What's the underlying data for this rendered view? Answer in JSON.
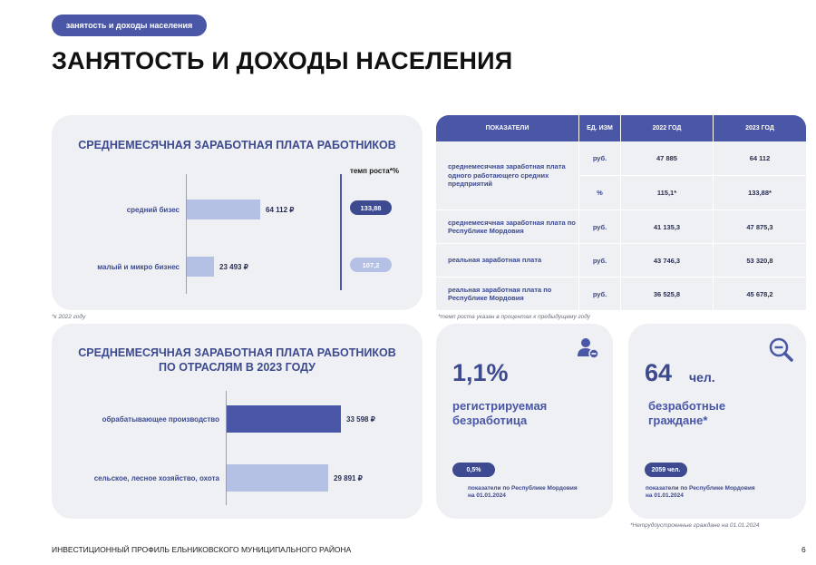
{
  "header": {
    "tag": "занятость и доходы населения",
    "title": "ЗАНЯТОСТЬ И ДОХОДЫ НАСЕЛЕНИЯ"
  },
  "chart_data": [
    {
      "type": "bar",
      "title": "СРЕДНЕМЕСЯЧНАЯ ЗАРАБОТНАЯ ПЛАТА РАБОТНИКОВ",
      "categories": [
        "средний бизес",
        "малый и микро бизнес"
      ],
      "values": [
        64112,
        23493
      ],
      "value_labels": [
        "64 112 ₽",
        "23 493 ₽"
      ],
      "growth_header": "темп роста*%",
      "growth_values": [
        "133,88",
        "107,2"
      ],
      "xlim": [
        0,
        70000
      ],
      "colors": [
        "#b4c0e4",
        "#b4c0e4"
      ],
      "note": "*к 2022 году"
    },
    {
      "type": "bar",
      "title_line1": "СРЕДНЕМЕСЯЧНАЯ ЗАРАБОТНАЯ ПЛАТА РАБОТНИКОВ",
      "title_line2": "ПО ОТРАСЛЯМ В 2023 ГОДУ",
      "categories": [
        "обрабатывающее производство",
        "сельское, лесное хозяйство, охота"
      ],
      "values": [
        33598,
        29891
      ],
      "value_labels": [
        "33 598 ₽",
        "29 891 ₽"
      ],
      "xlim": [
        0,
        70000
      ],
      "colors": [
        "#4a56a6",
        "#b4c0e4"
      ]
    }
  ],
  "table": {
    "headers": [
      "ПОКАЗАТЕЛИ",
      "ЕД. ИЗМ",
      "2022 ГОД",
      "2023 ГОД"
    ],
    "rows": [
      {
        "indicator": "среднемесячная заработная плата одного работающего средних предприятий",
        "unit": "руб.",
        "y2022": "47 885",
        "y2023": "64 112"
      },
      {
        "indicator": "",
        "unit": "%",
        "y2022": "115,1*",
        "y2023": "133,88*"
      },
      {
        "indicator": "среднемесячная заработная плата по Республике Мордовия",
        "unit": "руб.",
        "y2022": "41 135,3",
        "y2023": "47 875,3"
      },
      {
        "indicator": "реальная заработная плата",
        "unit": "руб.",
        "y2022": "43 746,3",
        "y2023": "53 320,8"
      },
      {
        "indicator": "реальная заработная плата по Республике Мордовия",
        "unit": "руб.",
        "y2022": "36 525,8",
        "y2023": "45 678,2"
      }
    ],
    "note": "*темп роста указан в процентах к предыдущему году"
  },
  "stats": [
    {
      "value": "1,1%",
      "unit": "",
      "label_line1": "регистрируемая",
      "label_line2": "безработица",
      "pill": "0,5%",
      "note_line1": "показатели по Республике Мордовия",
      "note_line2": "на 01.01.2024",
      "icon": "user-minus-icon"
    },
    {
      "value": "64",
      "unit": "чел.",
      "label_line1": "безработные",
      "label_line2": "граждане*",
      "pill": "2059 чел.",
      "note_line1": "показатели по Республике Мордовия",
      "note_line2": "на 01.01.2024",
      "icon": "zoom-out-icon",
      "footnote": "*Нетрудоустроенные граждане на 01.01.2024"
    }
  ],
  "footer": {
    "text": "ИНВЕСТИЦИОННЫЙ ПРОФИЛЬ ЕЛЬНИКОВСКОГО МУНИЦИПАЛЬНОГО РАЙОНА",
    "page": "6"
  },
  "colors": {
    "accent": "#4a56a6",
    "accent_dark": "#3d4a8f",
    "light_bar": "#b4c0e4",
    "card_bg": "#eef0f3"
  }
}
